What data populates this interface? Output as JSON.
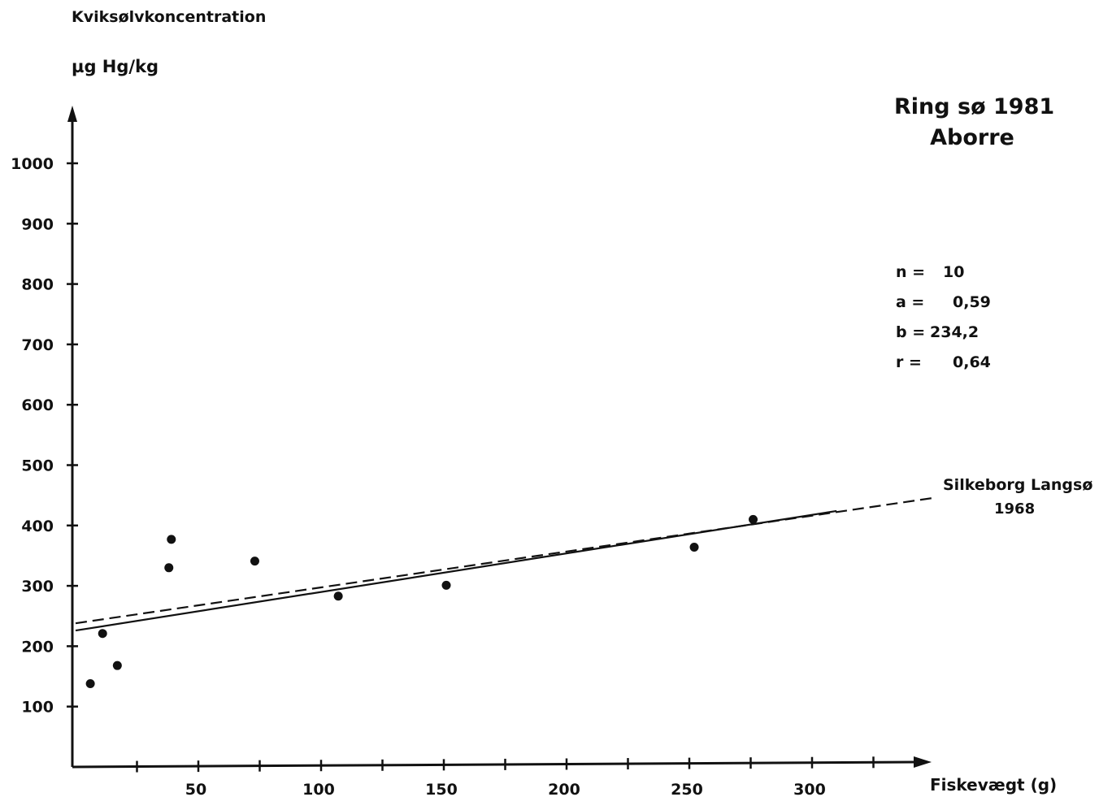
{
  "chart_data": {
    "type": "scatter",
    "title": "Ring sø 1981",
    "subtitle": "Aborre",
    "ylabel_line1": "Kviksølvkoncentration",
    "ylabel_line2": "µg Hg/kg",
    "xlabel": "Fiskevægt (g)",
    "xlim": [
      0,
      345
    ],
    "ylim": [
      0,
      1080
    ],
    "x_ticks": [
      50,
      100,
      150,
      200,
      250,
      300
    ],
    "x_minor_ticks": [
      25,
      75,
      125,
      175,
      225,
      275,
      325
    ],
    "y_ticks": [
      100,
      200,
      300,
      400,
      500,
      600,
      700,
      800,
      900,
      1000
    ],
    "grid": false,
    "points": [
      {
        "x": 6,
        "y": 138
      },
      {
        "x": 11,
        "y": 221
      },
      {
        "x": 17,
        "y": 168
      },
      {
        "x": 38,
        "y": 330
      },
      {
        "x": 39,
        "y": 377
      },
      {
        "x": 73,
        "y": 341
      },
      {
        "x": 107,
        "y": 283
      },
      {
        "x": 151,
        "y": 301
      },
      {
        "x": 252,
        "y": 364
      },
      {
        "x": 276,
        "y": 410
      }
    ],
    "regression": {
      "a": 0.59,
      "b": 234.2,
      "x_from": 0,
      "x_to": 310
    },
    "reference_line": {
      "label_line1": "Silkeborg Langsø",
      "label_line2": "1968",
      "x_from": 0,
      "x_to": 350,
      "y_from": 238,
      "y_to": 446
    },
    "stats": [
      {
        "key": "n =",
        "value": "10"
      },
      {
        "key": "a =",
        "value": "0,59"
      },
      {
        "key": "b =",
        "value": "234,2"
      },
      {
        "key": "r =",
        "value": "0,64"
      }
    ]
  }
}
